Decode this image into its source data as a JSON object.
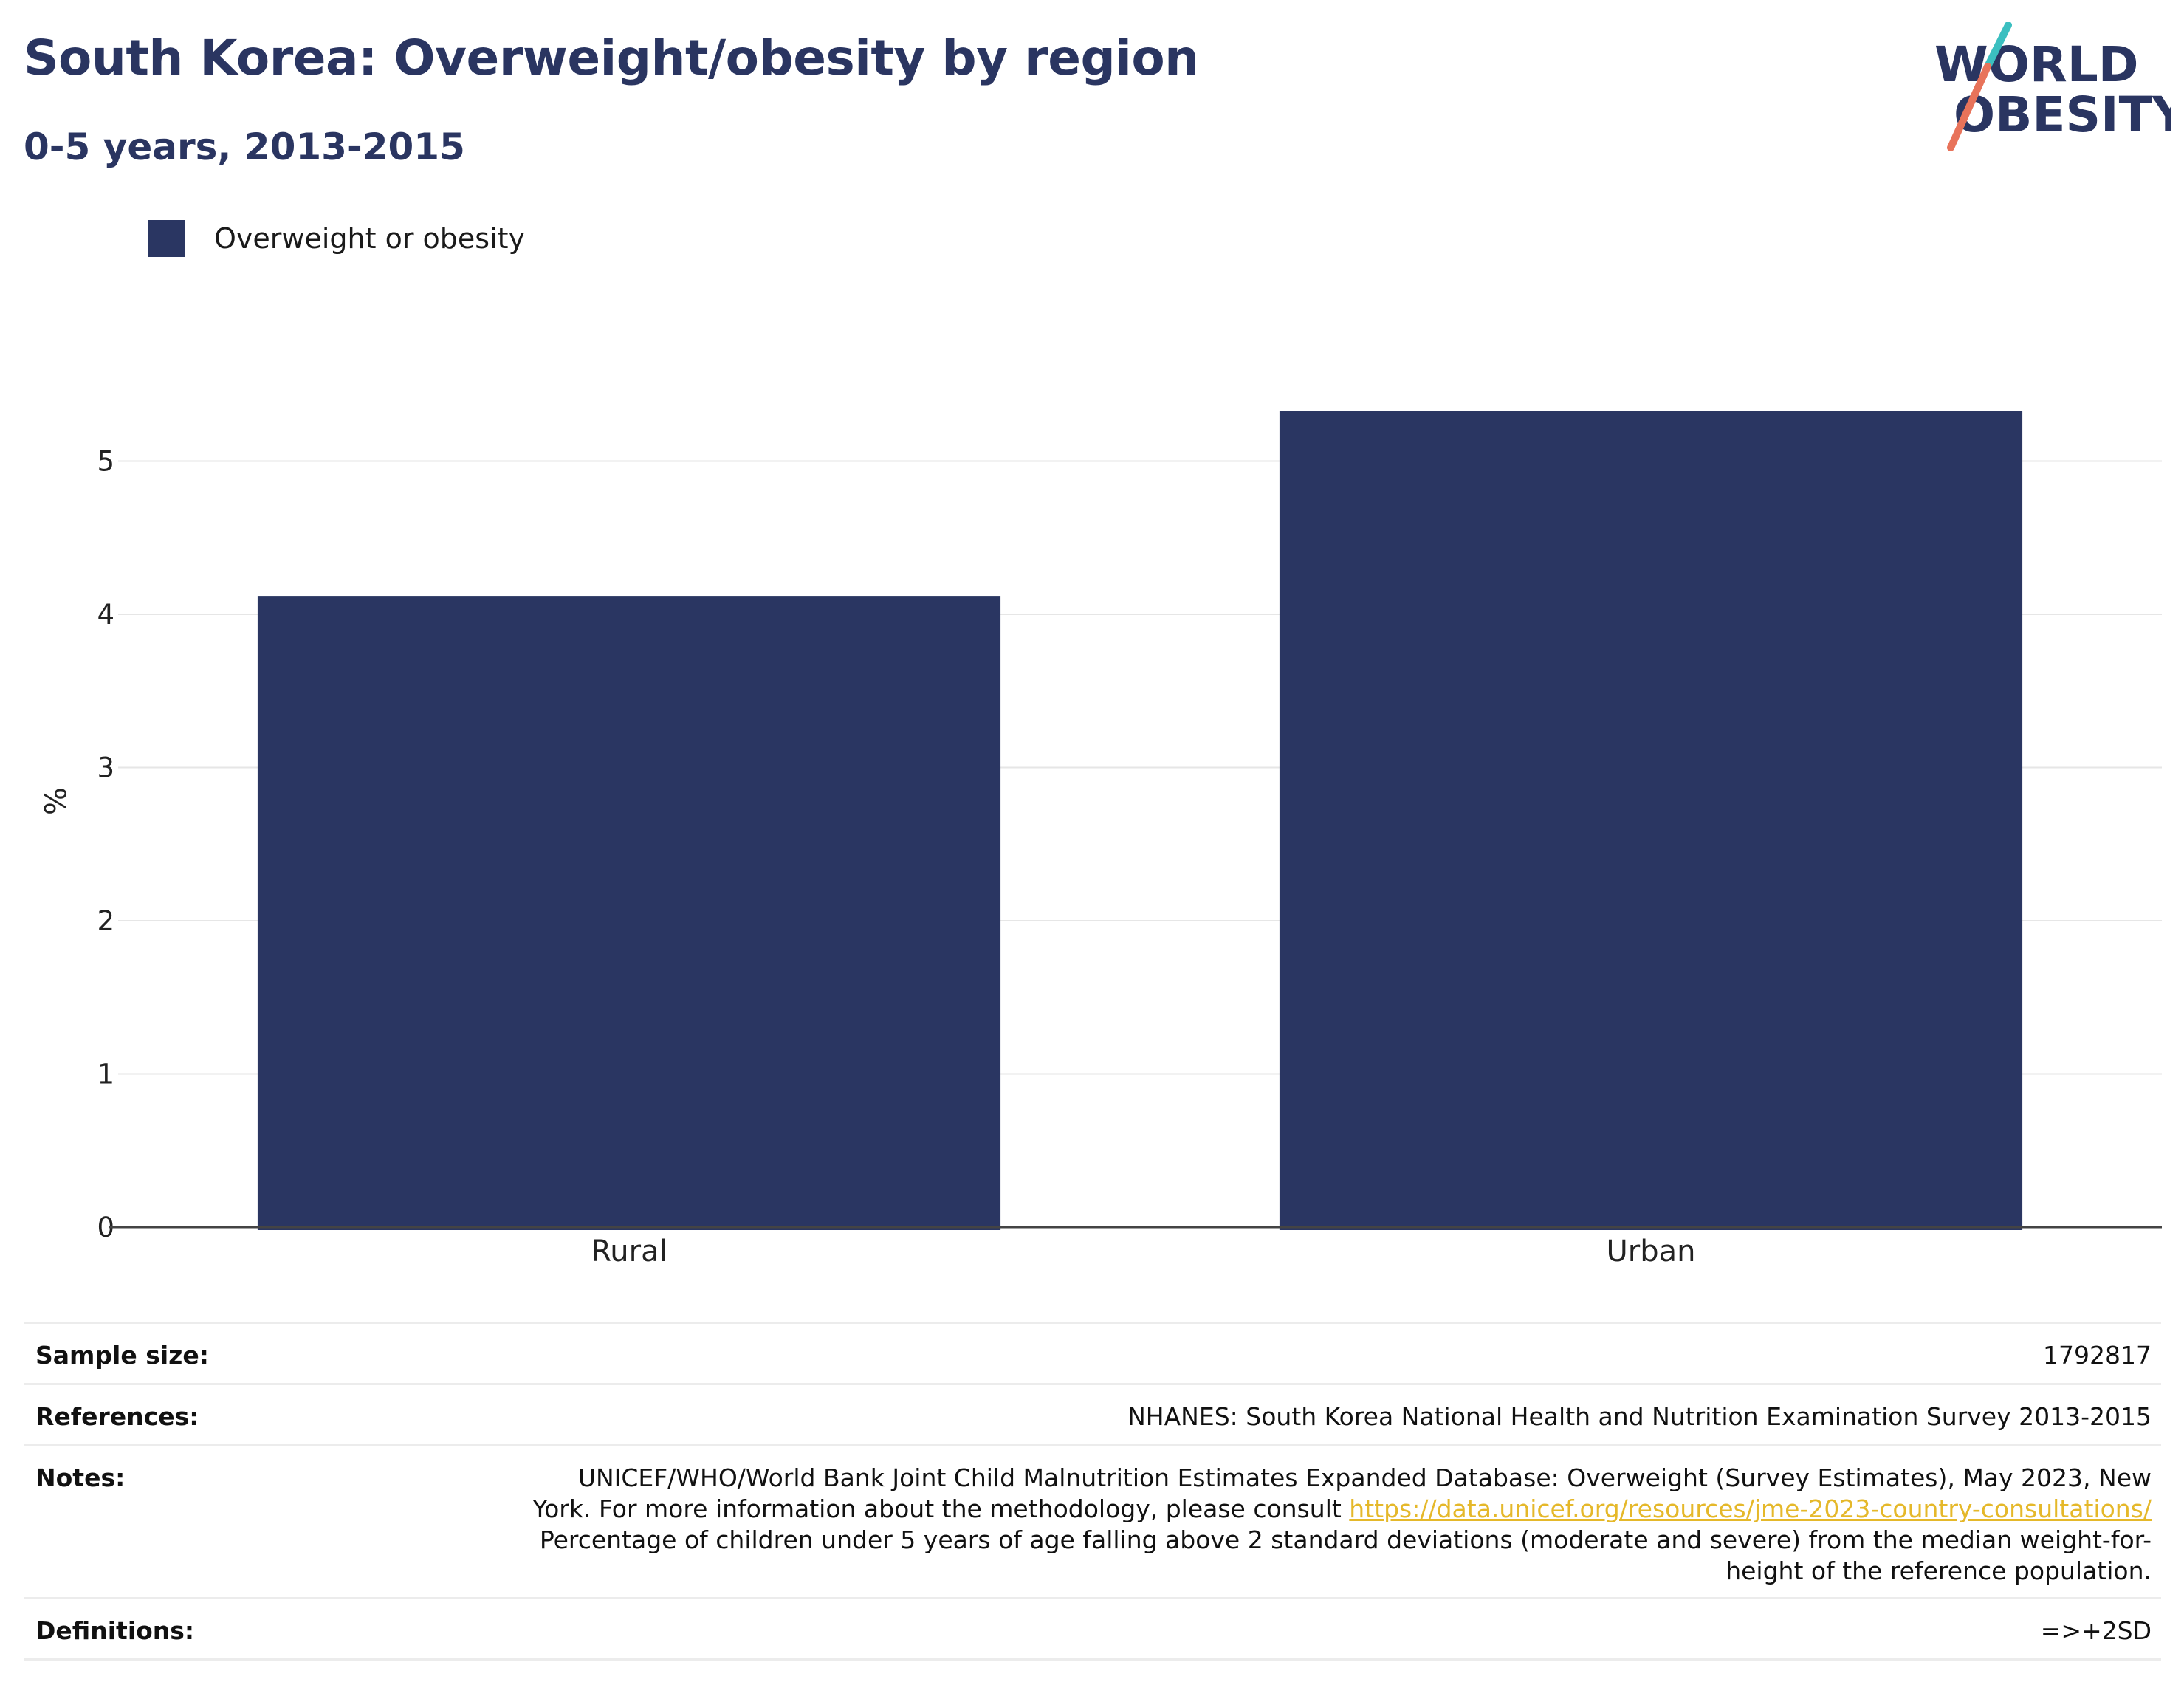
{
  "header": {
    "title": "South Korea: Overweight/obesity by region",
    "subtitle": "0-5 years, 2013-2015"
  },
  "logo": {
    "line1": "WORLD",
    "line2": "OBESITY",
    "colors": {
      "text": "#2a3561",
      "slash_top": "#3bbfc0",
      "slash_bottom": "#e8735a"
    }
  },
  "colors": {
    "bar": "#2a3662",
    "grid": "#e6e6e6",
    "axis": "#444444",
    "link": "#e5b82a"
  },
  "chart_data": {
    "type": "bar",
    "categories": [
      "Rural",
      "Urban"
    ],
    "series": [
      {
        "name": "Overweight or obesity",
        "values": [
          4.12,
          5.33
        ]
      }
    ],
    "title": "South Korea: Overweight/obesity by region",
    "subtitle": "0-5 years, 2013-2015",
    "xlabel": "",
    "ylabel": "%",
    "ylim": [
      0,
      5.7
    ],
    "yticks": [
      0,
      1,
      2,
      3,
      4,
      5
    ],
    "grid": true,
    "legend": "top-left"
  },
  "info": {
    "sample_size": {
      "label": "Sample size:",
      "value": "1792817"
    },
    "references": {
      "label": "References:",
      "value": "NHANES: South Korea National Health and Nutrition Examination Survey 2013-2015"
    },
    "notes": {
      "label": "Notes:",
      "line1": "UNICEF/WHO/World Bank Joint Child Malnutrition Estimates Expanded Database: Overweight (Survey Estimates), May 2023, New",
      "line2_text": "York. For more information about the methodology, please consult ",
      "line2_link": "https://data.unicef.org/resources/jme-2023-country-consultations/",
      "line3": "Percentage of children under 5 years of age falling above 2 standard deviations (moderate and severe) from the median weight-for-",
      "line4": "height of the reference population."
    },
    "definitions": {
      "label": "Definitions:",
      "value": "=>+2SD"
    }
  }
}
